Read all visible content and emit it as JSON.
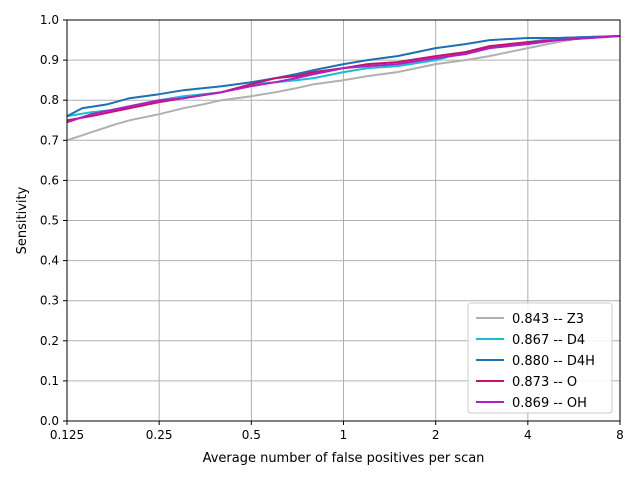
{
  "chart_data": {
    "type": "line",
    "xlabel": "Average number of false positives per scan",
    "ylabel": "Sensitivity",
    "x_scale": "log2",
    "xlim": [
      0.125,
      8
    ],
    "ylim": [
      0.0,
      1.0
    ],
    "grid": true,
    "legend_position": "lower-right",
    "x_ticks": [
      {
        "value": 0.125,
        "label": "0.125"
      },
      {
        "value": 0.25,
        "label": "0.25"
      },
      {
        "value": 0.5,
        "label": "0.5"
      },
      {
        "value": 1,
        "label": "1"
      },
      {
        "value": 2,
        "label": "2"
      },
      {
        "value": 4,
        "label": "4"
      },
      {
        "value": 8,
        "label": "8"
      }
    ],
    "y_ticks": [
      {
        "value": 0.0,
        "label": "0.0"
      },
      {
        "value": 0.1,
        "label": "0.1"
      },
      {
        "value": 0.2,
        "label": "0.2"
      },
      {
        "value": 0.3,
        "label": "0.3"
      },
      {
        "value": 0.4,
        "label": "0.4"
      },
      {
        "value": 0.5,
        "label": "0.5"
      },
      {
        "value": 0.6,
        "label": "0.6"
      },
      {
        "value": 0.7,
        "label": "0.7"
      },
      {
        "value": 0.8,
        "label": "0.8"
      },
      {
        "value": 0.9,
        "label": "0.9"
      },
      {
        "value": 1.0,
        "label": "1.0"
      }
    ],
    "series": [
      {
        "name": "0.843 -- Z3",
        "color": "#b0b0b0",
        "x": [
          0.125,
          0.15,
          0.18,
          0.2,
          0.25,
          0.3,
          0.35,
          0.4,
          0.5,
          0.6,
          0.7,
          0.8,
          1.0,
          1.2,
          1.5,
          2.0,
          2.5,
          3.0,
          4.0,
          5.0,
          6.0,
          8.0
        ],
        "y": [
          0.7,
          0.72,
          0.74,
          0.75,
          0.765,
          0.78,
          0.79,
          0.8,
          0.81,
          0.82,
          0.83,
          0.84,
          0.85,
          0.86,
          0.87,
          0.89,
          0.9,
          0.91,
          0.93,
          0.945,
          0.955,
          0.96
        ]
      },
      {
        "name": "0.867 -- D4",
        "color": "#17becf",
        "x": [
          0.125,
          0.15,
          0.2,
          0.25,
          0.3,
          0.4,
          0.5,
          0.6,
          0.7,
          0.8,
          1.0,
          1.2,
          1.5,
          2.0,
          2.5,
          3.0,
          4.0,
          5.0,
          8.0
        ],
        "y": [
          0.76,
          0.77,
          0.78,
          0.8,
          0.81,
          0.82,
          0.84,
          0.845,
          0.85,
          0.855,
          0.87,
          0.88,
          0.885,
          0.9,
          0.92,
          0.93,
          0.945,
          0.955,
          0.96
        ]
      },
      {
        "name": "0.880 -- D4H",
        "color": "#1f6fb4",
        "x": [
          0.125,
          0.14,
          0.17,
          0.2,
          0.25,
          0.3,
          0.4,
          0.5,
          0.6,
          0.7,
          0.8,
          1.0,
          1.2,
          1.5,
          2.0,
          2.5,
          3.0,
          4.0,
          5.0,
          8.0
        ],
        "y": [
          0.76,
          0.78,
          0.79,
          0.805,
          0.815,
          0.825,
          0.835,
          0.845,
          0.855,
          0.865,
          0.875,
          0.89,
          0.9,
          0.91,
          0.93,
          0.94,
          0.95,
          0.955,
          0.955,
          0.96
        ]
      },
      {
        "name": "0.873 -- O",
        "color": "#c8106e",
        "x": [
          0.125,
          0.15,
          0.2,
          0.25,
          0.3,
          0.4,
          0.5,
          0.6,
          0.7,
          0.8,
          1.0,
          1.2,
          1.5,
          2.0,
          2.5,
          3.0,
          4.0,
          5.0,
          8.0
        ],
        "y": [
          0.75,
          0.76,
          0.78,
          0.795,
          0.805,
          0.82,
          0.84,
          0.855,
          0.86,
          0.87,
          0.88,
          0.89,
          0.895,
          0.91,
          0.92,
          0.935,
          0.945,
          0.95,
          0.96
        ]
      },
      {
        "name": "0.869 -- OH",
        "color": "#b01fc2",
        "x": [
          0.125,
          0.15,
          0.2,
          0.25,
          0.3,
          0.4,
          0.5,
          0.6,
          0.7,
          0.8,
          1.0,
          1.2,
          1.5,
          2.0,
          2.5,
          3.0,
          4.0,
          5.0,
          8.0
        ],
        "y": [
          0.745,
          0.765,
          0.785,
          0.8,
          0.805,
          0.82,
          0.835,
          0.845,
          0.855,
          0.865,
          0.88,
          0.885,
          0.89,
          0.905,
          0.915,
          0.93,
          0.94,
          0.95,
          0.96
        ]
      }
    ]
  }
}
